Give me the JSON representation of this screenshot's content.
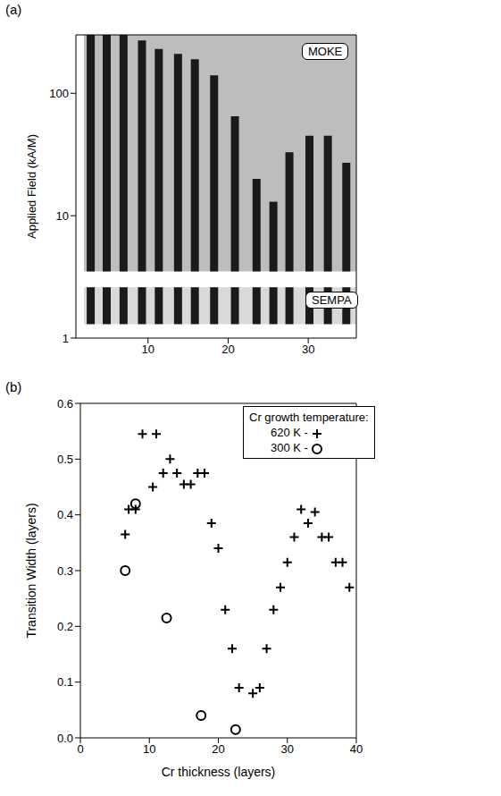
{
  "chart_data": [
    {
      "type": "bar",
      "panel_label": "(a)",
      "y_label": "Applied Field (kA/M)",
      "log": "y",
      "xlim": [
        1,
        36
      ],
      "xticks": [
        10,
        20,
        30
      ],
      "ylim": [
        1,
        300
      ],
      "yticks": [
        1,
        10,
        100
      ],
      "annotations": [
        "MOKE",
        "SEMPA"
      ],
      "color": "#1a1a1a",
      "image_x_range": [
        2,
        36
      ],
      "field_min": 3.5,
      "sempa_field_range": [
        1.3,
        2.6
      ],
      "x": [
        2.9,
        4.9,
        7.0,
        9.3,
        11.4,
        13.8,
        15.9,
        18.3,
        20.9,
        23.6,
        25.7,
        27.7,
        30.2,
        32.5,
        34.8
      ],
      "values": [
        300,
        300,
        300,
        270,
        230,
        210,
        190,
        140,
        65,
        20,
        13,
        33,
        45,
        45,
        27
      ]
    },
    {
      "type": "scatter",
      "panel_label": "(b)",
      "x_label": "Cr thickness (layers)",
      "y_label": "Transition Width (layers)",
      "xlim": [
        0,
        40
      ],
      "xticks": [
        0,
        10,
        20,
        30,
        40
      ],
      "ylim": [
        0,
        0.6
      ],
      "yticks": [
        {
          "value": 0,
          "label": "0.0"
        },
        0.1,
        0.2,
        0.3,
        0.4,
        0.5,
        0.6
      ],
      "legend": "upper right",
      "legend_title": "Cr growth temperature:",
      "series": [
        {
          "name": "620 K -",
          "marker": "plus",
          "color": "#000000",
          "x": [
            6.5,
            7,
            8,
            9,
            10.5,
            11,
            12,
            13,
            14,
            15,
            16,
            17,
            18,
            19,
            20,
            21,
            22,
            23,
            25,
            26,
            27,
            28,
            29,
            30,
            31,
            32,
            33,
            34,
            35,
            36,
            37,
            38,
            39
          ],
          "values": [
            0.365,
            0.41,
            0.41,
            0.545,
            0.45,
            0.545,
            0.475,
            0.5,
            0.475,
            0.455,
            0.455,
            0.475,
            0.475,
            0.385,
            0.34,
            0.23,
            0.16,
            0.09,
            0.08,
            0.09,
            0.16,
            0.23,
            0.27,
            0.315,
            0.36,
            0.41,
            0.385,
            0.405,
            0.36,
            0.36,
            0.315,
            0.315,
            0.27
          ]
        },
        {
          "name": "300 K -",
          "marker": "circle",
          "color": "#000000",
          "x": [
            6.5,
            8,
            12.5,
            17.5,
            22.5
          ],
          "values": [
            0.3,
            0.42,
            0.215,
            0.04,
            0.015
          ]
        }
      ]
    }
  ]
}
